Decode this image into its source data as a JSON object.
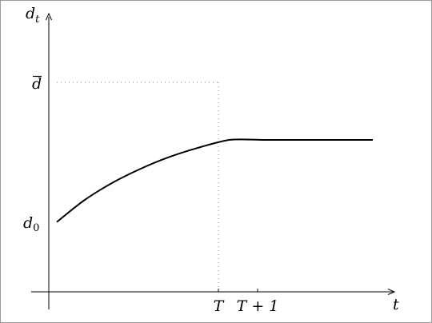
{
  "chart_data": {
    "type": "line",
    "title": "",
    "xlabel": "t",
    "ylabel": "d",
    "ylabel_sub": "t",
    "x_tick_labels": [
      {
        "text": "T",
        "at": 0
      },
      {
        "text": "T + 1",
        "at": 1
      }
    ],
    "y_tick_labels": [
      {
        "base": "d",
        "sub": "0",
        "bar": false,
        "at": 0
      },
      {
        "base": "d",
        "sub": "",
        "bar": true,
        "at": 1
      }
    ],
    "xlim": [
      -4.5,
      4.1
    ],
    "ylim": [
      -0.85,
      2.5
    ],
    "grid": false,
    "legend": "none",
    "series": [
      {
        "curve": "concave rise then flat",
        "color": "#000000",
        "x": [
          -4.3,
          -3.6,
          -2.9,
          -2.2,
          -1.5,
          -0.8,
          0.0,
          0.9,
          1.8,
          2.7,
          3.6
        ],
        "y": [
          0.0,
          0.27,
          0.48,
          0.65,
          0.79,
          0.9,
          1.0,
          1.0,
          1.0,
          1.0,
          1.0
        ]
      }
    ],
    "guides": {
      "dbar_dotted": true,
      "T_dotted": true,
      "color": "#888888"
    }
  }
}
